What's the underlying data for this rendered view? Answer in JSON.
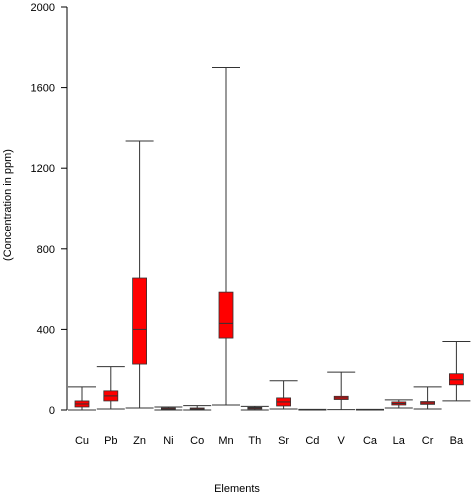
{
  "chart_data": {
    "type": "box",
    "x_label": "Elements",
    "y_label": "(Concentration in ppm)",
    "categories": [
      "Cu",
      "Pb",
      "Zn",
      "Ni",
      "Co",
      "Mn",
      "Th",
      "Sr",
      "Cd",
      "V",
      "Ca",
      "La",
      "Cr",
      "Ba"
    ],
    "min": [
      0,
      5,
      10,
      0,
      0,
      25,
      0,
      5,
      0,
      2,
      0,
      10,
      5,
      45
    ],
    "q1": [
      15,
      45,
      228,
      2,
      2,
      357,
      5,
      20,
      0,
      52,
      0,
      25,
      28,
      125
    ],
    "median": [
      30,
      70,
      400,
      5,
      5,
      430,
      10,
      40,
      1,
      60,
      1,
      32,
      35,
      150
    ],
    "q3": [
      45,
      95,
      655,
      10,
      10,
      585,
      13,
      60,
      2,
      68,
      2,
      40,
      42,
      180
    ],
    "max": [
      115,
      215,
      1335,
      15,
      22,
      1700,
      18,
      145,
      3,
      188,
      3,
      50,
      115,
      340
    ],
    "color": "#ff0000",
    "ylim": [
      0,
      2000
    ],
    "yticks": [
      0,
      400,
      800,
      1200,
      1600,
      2000
    ]
  }
}
